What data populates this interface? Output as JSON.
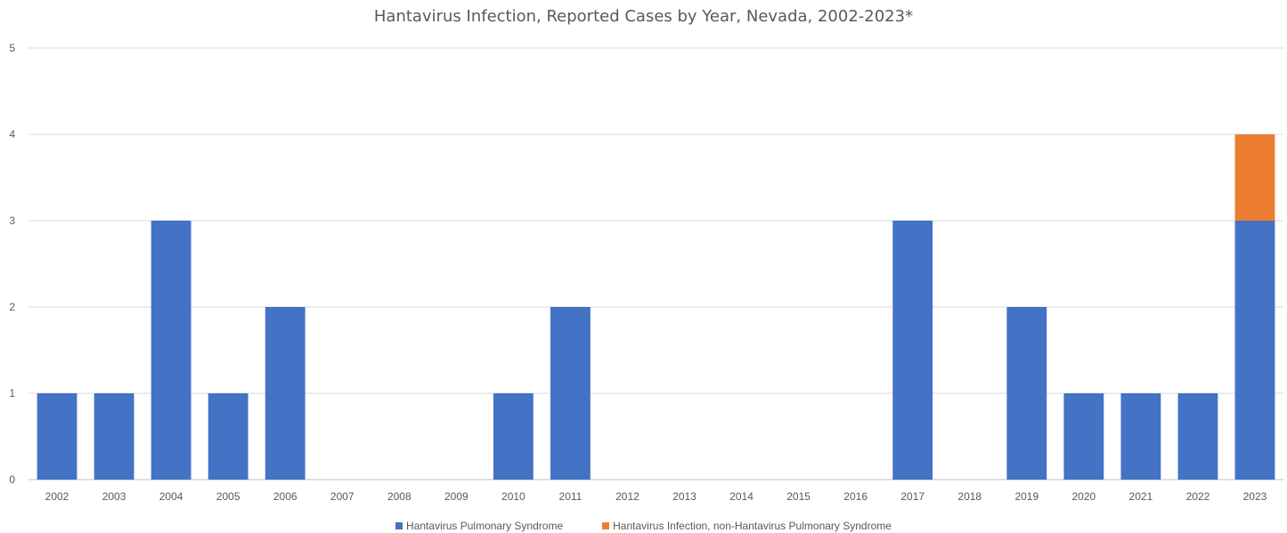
{
  "chart_data": {
    "type": "bar",
    "stacked": true,
    "title": "Hantavirus Infection, Reported Cases by Year, Nevada, 2002-2023*",
    "xlabel": "",
    "ylabel": "",
    "ylim": [
      0,
      5
    ],
    "yticks": [
      0,
      1,
      2,
      3,
      4,
      5
    ],
    "grid": true,
    "legend_position": "bottom",
    "categories": [
      "2002",
      "2003",
      "2004",
      "2005",
      "2006",
      "2007",
      "2008",
      "2009",
      "2010",
      "2011",
      "2012",
      "2013",
      "2014",
      "2015",
      "2016",
      "2017",
      "2018",
      "2019",
      "2020",
      "2021",
      "2022",
      "2023"
    ],
    "series": [
      {
        "name": "Hantavirus Pulmonary Syndrome",
        "color": "#4472C4",
        "values": [
          1,
          1,
          3,
          1,
          2,
          0,
          0,
          0,
          1,
          2,
          0,
          0,
          0,
          0,
          0,
          3,
          0,
          2,
          1,
          1,
          1,
          3
        ]
      },
      {
        "name": "Hantavirus Infection, non-Hantavirus Pulmonary Syndrome",
        "color": "#ED7D31",
        "values": [
          0,
          0,
          0,
          0,
          0,
          0,
          0,
          0,
          0,
          0,
          0,
          0,
          0,
          0,
          0,
          0,
          0,
          0,
          0,
          0,
          0,
          1
        ]
      }
    ]
  }
}
